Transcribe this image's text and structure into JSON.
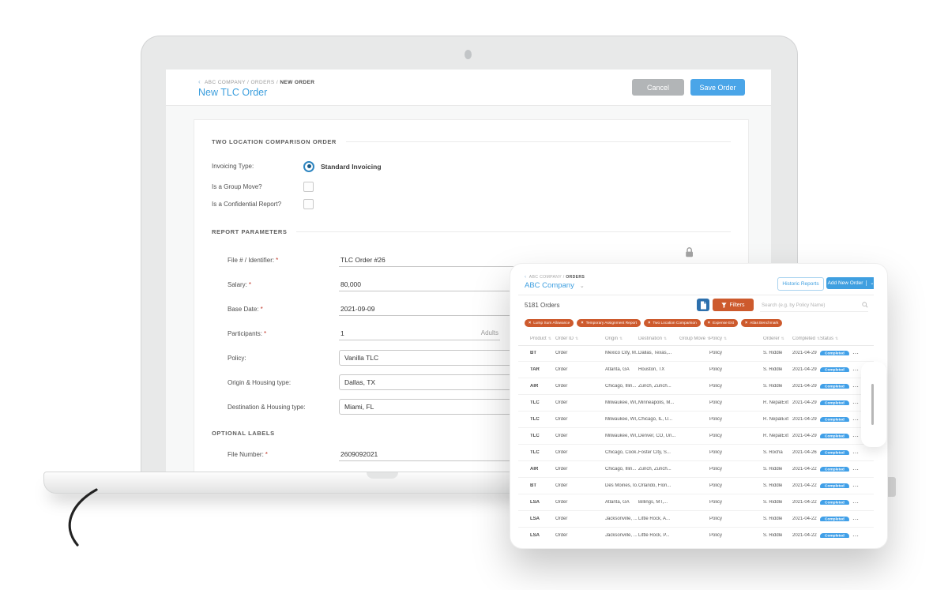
{
  "icons": {
    "back": "‹",
    "sep": "/",
    "chevron_down": "⌄",
    "close": "×",
    "sort": "⇅",
    "dots": "⋯"
  },
  "colors": {
    "accent_blue": "#3f9fe0",
    "accent_orange": "#cd5a2d",
    "status_pill_blue": "#41a0e8",
    "cancel_gray": "#b2b5b7"
  },
  "laptop": {
    "breadcrumb": [
      "ABC COMPANY",
      "ORDERS",
      "NEW ORDER"
    ],
    "title": "New TLC Order",
    "cancel_label": "Cancel",
    "save_label": "Save Order",
    "form": {
      "section_comparison": "TWO LOCATION COMPARISON ORDER",
      "invoicing": {
        "label": "Invoicing Type:",
        "option": "Standard Invoicing",
        "selected": true
      },
      "group_move": {
        "label": "Is a Group Move?",
        "checked": false
      },
      "confidential": {
        "label": "Is a Confidential Report?",
        "checked": false
      },
      "section_parameters": "REPORT PARAMETERS",
      "fields": [
        {
          "label": "File # / Identifier:",
          "required": "*",
          "value": "TLC Order #26"
        },
        {
          "label": "Salary:",
          "required": "*",
          "value": "80,000"
        },
        {
          "label": "Base Date:",
          "required": "*",
          "value": "2021-09-09"
        },
        {
          "label": "Participants:",
          "required": "*",
          "value": "1",
          "unit": "Adults"
        },
        {
          "label": "Policy:",
          "required": "",
          "value": "Vanilla TLC"
        },
        {
          "label": "Origin & Housing type:",
          "required": "",
          "value": "Dallas, TX"
        },
        {
          "label": "Destination & Housing type:",
          "required": "",
          "value": "Miami, FL"
        }
      ],
      "section_optional": "OPTIONAL LABELS",
      "file_number": {
        "label": "File Number:",
        "required": "*",
        "value": "2609092021"
      }
    }
  },
  "tablet": {
    "breadcrumb": [
      "ABC COMPANY",
      "ORDERS"
    ],
    "company": "ABC Company",
    "historic_label": "Historic Reports",
    "add_order_label": "Add New Order",
    "orders_count": "5181 Orders",
    "filters_label": "Filters",
    "search_placeholder": "Search (e.g. by Policy Name)",
    "chips": [
      "Lump Sum Allowance",
      "Temporary Assignment Report",
      "Two Location Comparison",
      "Expense Est",
      "Atlas Benchmark"
    ],
    "table": {
      "columns": [
        "Product",
        "Order ID",
        "Origin",
        "Destination",
        "Group Move",
        "Policy",
        "Orderer",
        "Completed",
        "Status"
      ],
      "rows": [
        {
          "product": "BT",
          "order_id": "Order",
          "origin": "Mexico City, M...",
          "destination": "Dallas, Texas,...",
          "group_move": "",
          "policy": "Policy",
          "orderer": "S. Riddle",
          "completed": "2021-04-29",
          "status": "Completed"
        },
        {
          "product": "TAR",
          "order_id": "Order",
          "origin": "Atlanta, GA",
          "destination": "Houston, TX",
          "group_move": "",
          "policy": "Policy",
          "orderer": "S. Riddle",
          "completed": "2021-04-29",
          "status": "Completed"
        },
        {
          "product": "AIR",
          "order_id": "Order",
          "origin": "Chicago, Illin...",
          "destination": "Zurich, Zurich...",
          "group_move": "",
          "policy": "Policy",
          "orderer": "S. Riddle",
          "completed": "2021-04-29",
          "status": "Completed"
        },
        {
          "product": "TLC",
          "order_id": "Order",
          "origin": "Milwaukee, WI,...",
          "destination": "Minneapolis, M...",
          "group_move": "",
          "policy": "Policy",
          "orderer": "R. NepalExt",
          "completed": "2021-04-29",
          "status": "Completed"
        },
        {
          "product": "TLC",
          "order_id": "Order",
          "origin": "Milwaukee, WI,...",
          "destination": "Chicago, IL, U...",
          "group_move": "",
          "policy": "Policy",
          "orderer": "R. NepalExt",
          "completed": "2021-04-29",
          "status": "Completed"
        },
        {
          "product": "TLC",
          "order_id": "Order",
          "origin": "Milwaukee, WI,...",
          "destination": "Denver, CO, Un...",
          "group_move": "",
          "policy": "Policy",
          "orderer": "R. NepalExt",
          "completed": "2021-04-29",
          "status": "Completed"
        },
        {
          "product": "TLC",
          "order_id": "Order",
          "origin": "Chicago, Cook...",
          "destination": "Foster City, S...",
          "group_move": "",
          "policy": "Policy",
          "orderer": "S. Rocha",
          "completed": "2021-04-26",
          "status": "Completed"
        },
        {
          "product": "AIR",
          "order_id": "Order",
          "origin": "Chicago, Illin...",
          "destination": "Zurich, Zurich...",
          "group_move": "",
          "policy": "Policy",
          "orderer": "S. Riddle",
          "completed": "2021-04-22",
          "status": "Completed"
        },
        {
          "product": "BT",
          "order_id": "Order",
          "origin": "Des Moines, Io...",
          "destination": "Orlando, Flori...",
          "group_move": "",
          "policy": "Policy",
          "orderer": "S. Riddle",
          "completed": "2021-04-22",
          "status": "Completed"
        },
        {
          "product": "LSA",
          "order_id": "Order",
          "origin": "Atlanta, GA",
          "destination": "Billings, MT,...",
          "group_move": "",
          "policy": "Policy",
          "orderer": "S. Riddle",
          "completed": "2021-04-22",
          "status": "Completed"
        },
        {
          "product": "LSA",
          "order_id": "Order",
          "origin": "Jacksonville, ...",
          "destination": "Little Rock, A...",
          "group_move": "",
          "policy": "Policy",
          "orderer": "S. Riddle",
          "completed": "2021-04-22",
          "status": "Completed"
        },
        {
          "product": "LSA",
          "order_id": "Order",
          "origin": "Jacksonville, ...",
          "destination": "Little Rock, P...",
          "group_move": "",
          "policy": "Policy",
          "orderer": "S. Riddle",
          "completed": "2021-04-22",
          "status": "Completed"
        }
      ]
    }
  }
}
